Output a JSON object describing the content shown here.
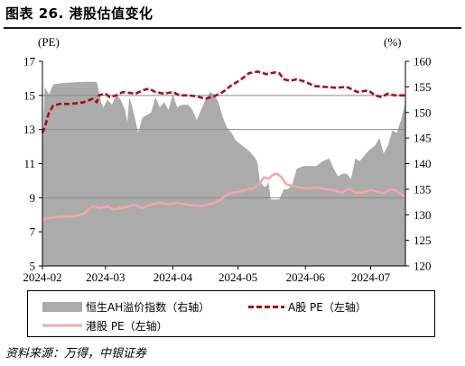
{
  "title": "图表 26. 港股估值变化",
  "source": "资料来源：万得，中银证券",
  "colors": {
    "area": "#ababab",
    "ah_line": "#a80d18",
    "pe_line": "#f0a8a8",
    "grid": "#8a8a8a"
  },
  "chart_data": {
    "type": "line",
    "left_unit": "(PE)",
    "right_unit": "(%)",
    "y_left": {
      "min": 5,
      "max": 17,
      "ticks": [
        "17",
        "15",
        "13",
        "11",
        "9",
        "7",
        "5"
      ]
    },
    "y_right": {
      "min": 120,
      "max": 160,
      "ticks": [
        "160",
        "155",
        "150",
        "145",
        "140",
        "135",
        "130",
        "125",
        "120"
      ]
    },
    "x_ticks": [
      "2024-02",
      "2024-03",
      "2024-04",
      "2024-05",
      "2024-06",
      "2024-07"
    ],
    "x_range": [
      "2024-02-01",
      "2024-07-17"
    ],
    "grid_lines_y": [
      15,
      13,
      9
    ],
    "legend": [
      {
        "label": "恒生AH溢价指数（右轴）",
        "marker": "area"
      },
      {
        "label": "A股 PE（左轴）",
        "marker": "dashed"
      },
      {
        "label": "港股 PE（左轴）",
        "marker": "solid"
      }
    ],
    "series": [
      {
        "axis": "right",
        "style": "area",
        "points": [
          [
            "2024-02-01",
            142
          ],
          [
            "2024-02-02",
            155
          ],
          [
            "2024-02-04",
            153.5
          ],
          [
            "2024-02-06",
            155.5
          ],
          [
            "2024-02-12",
            155.8
          ],
          [
            "2024-02-20",
            156
          ],
          [
            "2024-02-26",
            156
          ],
          [
            "2024-02-28",
            152
          ],
          [
            "2024-02-29",
            151
          ],
          [
            "2024-03-02",
            152.5
          ],
          [
            "2024-03-04",
            151.5
          ],
          [
            "2024-03-06",
            153.5
          ],
          [
            "2024-03-08",
            152.5
          ],
          [
            "2024-03-10",
            150.5
          ],
          [
            "2024-03-11",
            148
          ],
          [
            "2024-03-12",
            153
          ],
          [
            "2024-03-14",
            150
          ],
          [
            "2024-03-16",
            146
          ],
          [
            "2024-03-18",
            149
          ],
          [
            "2024-03-20",
            149.5
          ],
          [
            "2024-03-22",
            150
          ],
          [
            "2024-03-24",
            153
          ],
          [
            "2024-03-26",
            151
          ],
          [
            "2024-03-28",
            152
          ],
          [
            "2024-03-30",
            150.5
          ],
          [
            "2024-04-01",
            153.5
          ],
          [
            "2024-04-03",
            151
          ],
          [
            "2024-04-05",
            151.5
          ],
          [
            "2024-04-08",
            151.5
          ],
          [
            "2024-04-10",
            150.5
          ],
          [
            "2024-04-12",
            148.5
          ],
          [
            "2024-04-14",
            150.5
          ],
          [
            "2024-04-16",
            152.5
          ],
          [
            "2024-04-18",
            154
          ],
          [
            "2024-04-20",
            153.5
          ],
          [
            "2024-04-22",
            152
          ],
          [
            "2024-04-24",
            149
          ],
          [
            "2024-04-26",
            147
          ],
          [
            "2024-04-28",
            146
          ],
          [
            "2024-04-30",
            144.5
          ],
          [
            "2024-05-03",
            143.5
          ],
          [
            "2024-05-06",
            142.5
          ],
          [
            "2024-05-09",
            141
          ],
          [
            "2024-05-10",
            140
          ],
          [
            "2024-05-11",
            136.5
          ],
          [
            "2024-05-13",
            135.5
          ],
          [
            "2024-05-14",
            135.5
          ],
          [
            "2024-05-15",
            136.5
          ],
          [
            "2024-05-16",
            133
          ],
          [
            "2024-05-18",
            133
          ],
          [
            "2024-05-20",
            133
          ],
          [
            "2024-05-22",
            135
          ],
          [
            "2024-05-24",
            135
          ],
          [
            "2024-05-26",
            136
          ],
          [
            "2024-05-28",
            139
          ],
          [
            "2024-05-31",
            139.5
          ],
          [
            "2024-06-03",
            139.5
          ],
          [
            "2024-06-06",
            139.5
          ],
          [
            "2024-06-09",
            140.5
          ],
          [
            "2024-06-12",
            141
          ],
          [
            "2024-06-14",
            139
          ],
          [
            "2024-06-16",
            137.5
          ],
          [
            "2024-06-18",
            138
          ],
          [
            "2024-06-20",
            138
          ],
          [
            "2024-06-22",
            137
          ],
          [
            "2024-06-24",
            141
          ],
          [
            "2024-06-26",
            140.5
          ],
          [
            "2024-06-28",
            141.5
          ],
          [
            "2024-06-30",
            142.5
          ],
          [
            "2024-07-03",
            143.5
          ],
          [
            "2024-07-05",
            145
          ],
          [
            "2024-07-07",
            142
          ],
          [
            "2024-07-09",
            143.5
          ],
          [
            "2024-07-11",
            146.5
          ],
          [
            "2024-07-13",
            146
          ],
          [
            "2024-07-15",
            148.5
          ],
          [
            "2024-07-17",
            152
          ]
        ]
      },
      {
        "name": "A股 PE（左轴）",
        "axis": "left",
        "style": "dashed",
        "points": [
          [
            "2024-02-01",
            12.8
          ],
          [
            "2024-02-02",
            13.1
          ],
          [
            "2024-02-04",
            14.0
          ],
          [
            "2024-02-06",
            14.4
          ],
          [
            "2024-02-09",
            14.5
          ],
          [
            "2024-02-14",
            14.5
          ],
          [
            "2024-02-20",
            14.6
          ],
          [
            "2024-02-24",
            14.8
          ],
          [
            "2024-02-26",
            14.6
          ],
          [
            "2024-02-27",
            15.0
          ],
          [
            "2024-03-01",
            15.1
          ],
          [
            "2024-03-03",
            14.9
          ],
          [
            "2024-03-06",
            15.0
          ],
          [
            "2024-03-09",
            15.2
          ],
          [
            "2024-03-12",
            15.15
          ],
          [
            "2024-03-15",
            15.1
          ],
          [
            "2024-03-18",
            15.3
          ],
          [
            "2024-03-21",
            15.4
          ],
          [
            "2024-03-24",
            15.2
          ],
          [
            "2024-03-28",
            15.1
          ],
          [
            "2024-04-01",
            15.2
          ],
          [
            "2024-04-04",
            15.0
          ],
          [
            "2024-04-08",
            15.0
          ],
          [
            "2024-04-12",
            14.95
          ],
          [
            "2024-04-16",
            14.8
          ],
          [
            "2024-04-20",
            14.95
          ],
          [
            "2024-04-24",
            15.2
          ],
          [
            "2024-04-28",
            15.6
          ],
          [
            "2024-05-02",
            15.9
          ],
          [
            "2024-05-06",
            16.3
          ],
          [
            "2024-05-10",
            16.4
          ],
          [
            "2024-05-14",
            16.25
          ],
          [
            "2024-05-18",
            16.35
          ],
          [
            "2024-05-20",
            16.3
          ],
          [
            "2024-05-22",
            15.95
          ],
          [
            "2024-05-25",
            15.85
          ],
          [
            "2024-05-28",
            15.95
          ],
          [
            "2024-06-01",
            15.8
          ],
          [
            "2024-06-05",
            15.55
          ],
          [
            "2024-06-10",
            15.5
          ],
          [
            "2024-06-15",
            15.45
          ],
          [
            "2024-06-20",
            15.5
          ],
          [
            "2024-06-25",
            15.2
          ],
          [
            "2024-06-30",
            15.3
          ],
          [
            "2024-07-03",
            15.0
          ],
          [
            "2024-07-06",
            14.9
          ],
          [
            "2024-07-09",
            15.1
          ],
          [
            "2024-07-12",
            15.0
          ],
          [
            "2024-07-15",
            15.0
          ],
          [
            "2024-07-17",
            15.0
          ]
        ]
      },
      {
        "name": "港股 PE",
        "axis": "left",
        "style": "solid",
        "points": [
          [
            "2024-02-01",
            7.7
          ],
          [
            "2024-02-03",
            7.8
          ],
          [
            "2024-02-06",
            7.85
          ],
          [
            "2024-02-10",
            7.9
          ],
          [
            "2024-02-15",
            7.9
          ],
          [
            "2024-02-20",
            8.05
          ],
          [
            "2024-02-24",
            8.5
          ],
          [
            "2024-02-28",
            8.4
          ],
          [
            "2024-03-02",
            8.5
          ],
          [
            "2024-03-05",
            8.3
          ],
          [
            "2024-03-08",
            8.4
          ],
          [
            "2024-03-11",
            8.45
          ],
          [
            "2024-03-14",
            8.6
          ],
          [
            "2024-03-18",
            8.4
          ],
          [
            "2024-03-22",
            8.6
          ],
          [
            "2024-03-26",
            8.7
          ],
          [
            "2024-03-30",
            8.6
          ],
          [
            "2024-04-03",
            8.7
          ],
          [
            "2024-04-07",
            8.6
          ],
          [
            "2024-04-10",
            8.55
          ],
          [
            "2024-04-14",
            8.5
          ],
          [
            "2024-04-18",
            8.6
          ],
          [
            "2024-04-22",
            8.8
          ],
          [
            "2024-04-25",
            9.1
          ],
          [
            "2024-04-28",
            9.3
          ],
          [
            "2024-05-02",
            9.35
          ],
          [
            "2024-05-05",
            9.5
          ],
          [
            "2024-05-08",
            9.55
          ],
          [
            "2024-05-11",
            9.85
          ],
          [
            "2024-05-13",
            10.2
          ],
          [
            "2024-05-15",
            10.1
          ],
          [
            "2024-05-17",
            10.35
          ],
          [
            "2024-05-19",
            10.4
          ],
          [
            "2024-05-21",
            10.2
          ],
          [
            "2024-05-23",
            9.8
          ],
          [
            "2024-05-26",
            9.7
          ],
          [
            "2024-05-29",
            9.6
          ],
          [
            "2024-06-02",
            9.55
          ],
          [
            "2024-06-06",
            9.6
          ],
          [
            "2024-06-10",
            9.5
          ],
          [
            "2024-06-14",
            9.45
          ],
          [
            "2024-06-18",
            9.3
          ],
          [
            "2024-06-21",
            9.55
          ],
          [
            "2024-06-24",
            9.3
          ],
          [
            "2024-06-27",
            9.3
          ],
          [
            "2024-07-01",
            9.45
          ],
          [
            "2024-07-04",
            9.35
          ],
          [
            "2024-07-07",
            9.25
          ],
          [
            "2024-07-10",
            9.5
          ],
          [
            "2024-07-12",
            9.45
          ],
          [
            "2024-07-14",
            9.3
          ],
          [
            "2024-07-17",
            9.05
          ]
        ]
      }
    ]
  }
}
